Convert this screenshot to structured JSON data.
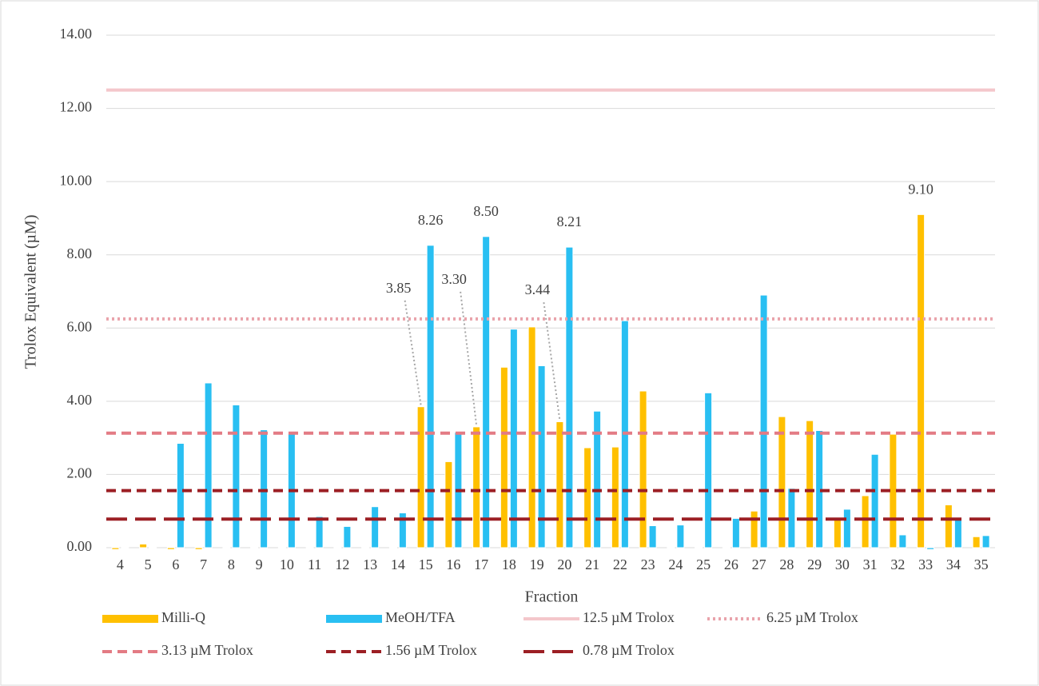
{
  "chart_data": {
    "type": "bar",
    "x_label": "Fraction",
    "y_label": "Trolox Equivalent (µM)",
    "categories": [
      "4",
      "5",
      "6",
      "7",
      "8",
      "9",
      "10",
      "11",
      "12",
      "13",
      "14",
      "15",
      "16",
      "17",
      "18",
      "19",
      "20",
      "21",
      "22",
      "23",
      "24",
      "25",
      "26",
      "27",
      "28",
      "29",
      "30",
      "31",
      "32",
      "33",
      "34",
      "35"
    ],
    "series": [
      {
        "name": "Milli-Q",
        "color": "#ffc000",
        "values": [
          -0.05,
          0.1,
          -0.05,
          -0.05,
          0,
          0,
          0,
          0,
          0,
          0,
          0,
          3.85,
          2.35,
          3.3,
          4.93,
          6.03,
          3.44,
          2.73,
          2.75,
          4.28,
          0,
          0,
          0,
          1.0,
          3.58,
          3.47,
          0.8,
          1.42,
          3.1,
          9.1,
          1.17,
          0.3
        ],
        "value_labels": [
          null,
          null,
          null,
          null,
          null,
          null,
          null,
          null,
          null,
          null,
          null,
          "3.85",
          null,
          "3.30",
          null,
          null,
          "3.44",
          null,
          null,
          null,
          null,
          null,
          null,
          null,
          null,
          null,
          null,
          null,
          null,
          "9.10",
          null,
          null
        ]
      },
      {
        "name": "MeOH/TFA",
        "color": "#29bff2",
        "values": [
          0,
          0,
          2.85,
          4.5,
          3.9,
          3.22,
          3.12,
          0.85,
          0.58,
          1.12,
          0.95,
          8.26,
          3.15,
          8.5,
          5.97,
          4.97,
          8.21,
          3.73,
          6.2,
          0.6,
          0.62,
          4.23,
          0.8,
          6.9,
          1.62,
          3.2,
          1.05,
          2.55,
          0.35,
          -0.05,
          0.8,
          0.33
        ],
        "value_labels": [
          null,
          null,
          null,
          null,
          null,
          null,
          null,
          null,
          null,
          null,
          null,
          "8.26",
          null,
          "8.50",
          null,
          null,
          "8.21",
          null,
          null,
          null,
          null,
          null,
          null,
          null,
          null,
          null,
          null,
          null,
          null,
          null,
          null,
          null
        ]
      }
    ],
    "reference_lines": [
      {
        "name": "12.5 µM Trolox",
        "value": 12.5,
        "color": "#f4c7cb",
        "dash": "solid"
      },
      {
        "name": "6.25 µM Trolox",
        "value": 6.25,
        "color": "#e9a3ab",
        "dash": "dotted"
      },
      {
        "name": "3.13 µM Trolox",
        "value": 3.13,
        "color": "#e37b84",
        "dash": "dashed"
      },
      {
        "name": "1.56 µM Trolox",
        "value": 1.56,
        "color": "#9c1f24",
        "dash": "dashed"
      },
      {
        "name": "0.78 µM Trolox",
        "value": 0.78,
        "color": "#9c1f24",
        "dash": "longdash"
      }
    ],
    "ylim": [
      0,
      14
    ],
    "yticks": [
      {
        "value": 0,
        "label": "0.00"
      },
      {
        "value": 2,
        "label": "2.00"
      },
      {
        "value": 4,
        "label": "4.00"
      },
      {
        "value": 6,
        "label": "6.00"
      },
      {
        "value": 8,
        "label": "8.00"
      },
      {
        "value": 10,
        "label": "10.00"
      },
      {
        "value": 12,
        "label": "12.00"
      },
      {
        "value": 14,
        "label": "14.00"
      }
    ],
    "grid": true
  }
}
